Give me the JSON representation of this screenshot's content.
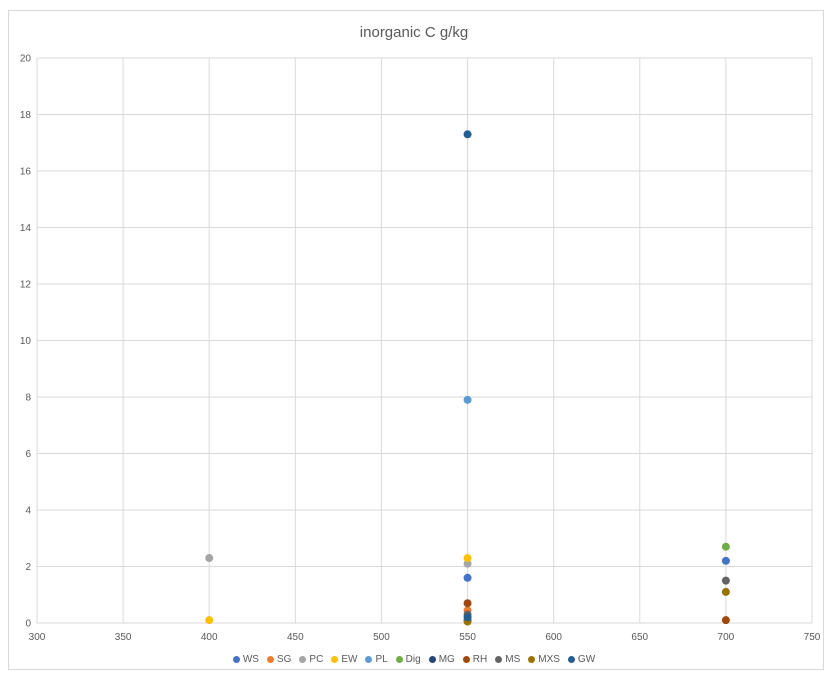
{
  "chart_data": {
    "type": "scatter",
    "title": "inorganic C g/kg",
    "xlabel": "",
    "ylabel": "",
    "xlim": [
      300,
      750
    ],
    "ylim": [
      0,
      20
    ],
    "x_ticks": [
      300,
      350,
      400,
      450,
      500,
      550,
      600,
      650,
      700,
      750
    ],
    "y_ticks": [
      0,
      2,
      4,
      6,
      8,
      10,
      12,
      14,
      16,
      18,
      20
    ],
    "grid": true,
    "legend_position": "bottom",
    "series": [
      {
        "name": "WS",
        "color": "#4472c4",
        "points": [
          [
            550,
            1.6
          ],
          [
            700,
            2.2
          ]
        ]
      },
      {
        "name": "SG",
        "color": "#ed7d31",
        "points": [
          [
            550,
            0.45
          ]
        ]
      },
      {
        "name": "PC",
        "color": "#a5a5a5",
        "points": [
          [
            400,
            2.3
          ],
          [
            550,
            2.1
          ]
        ]
      },
      {
        "name": "EW",
        "color": "#ffc000",
        "points": [
          [
            400,
            0.1
          ],
          [
            550,
            2.3
          ]
        ]
      },
      {
        "name": "PL",
        "color": "#5b9bd5",
        "points": [
          [
            550,
            7.9
          ]
        ]
      },
      {
        "name": "Dig",
        "color": "#70ad47",
        "points": [
          [
            700,
            2.7
          ]
        ]
      },
      {
        "name": "MG",
        "color": "#264478",
        "points": [
          [
            550,
            0.1
          ]
        ]
      },
      {
        "name": "RH",
        "color": "#9e480e",
        "points": [
          [
            550,
            0.7
          ],
          [
            700,
            0.1
          ]
        ]
      },
      {
        "name": "MS",
        "color": "#636363",
        "points": [
          [
            550,
            0.3
          ],
          [
            700,
            1.5
          ]
        ]
      },
      {
        "name": "MXS",
        "color": "#997300",
        "points": [
          [
            550,
            0.05
          ],
          [
            700,
            1.1
          ]
        ]
      },
      {
        "name": "GW",
        "color": "#255e91",
        "points": [
          [
            550,
            17.3
          ],
          [
            550,
            0.2
          ]
        ]
      }
    ]
  }
}
